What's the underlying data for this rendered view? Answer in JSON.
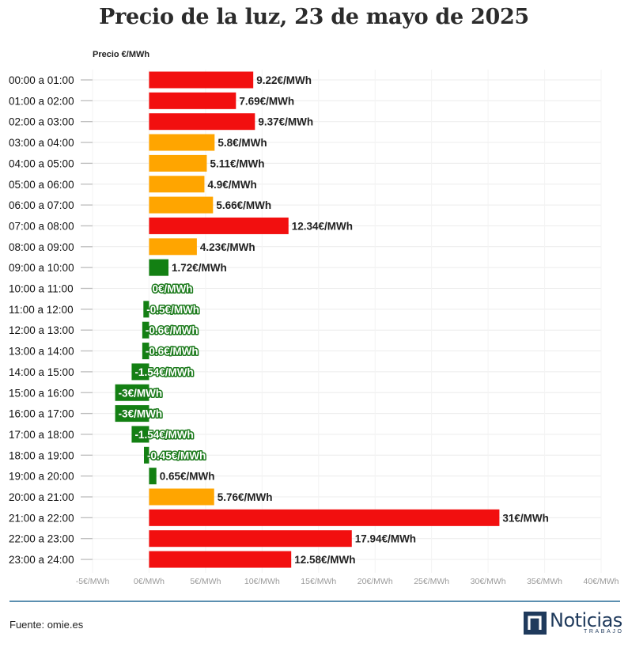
{
  "chart_data": {
    "type": "bar",
    "orientation": "horizontal",
    "title": "Precio de la luz, 23 de mayo de 2025",
    "ylabel": "Precio €/MWh",
    "xlabel": "",
    "xlim": [
      -5,
      40
    ],
    "xticks": [
      "-5€/MWh",
      "0€/MWh",
      "5€/MWh",
      "10€/MWh",
      "15€/MWh",
      "20€/MWh",
      "25€/MWh",
      "30€/MWh",
      "35€/MWh",
      "40€/MWh"
    ],
    "xtick_values": [
      -5,
      0,
      5,
      10,
      15,
      20,
      25,
      30,
      35,
      40
    ],
    "grid": true,
    "categories": [
      "00:00 a 01:00",
      "01:00 a 02:00",
      "02:00 a 03:00",
      "03:00 a 04:00",
      "04:00 a 05:00",
      "05:00 a 06:00",
      "06:00 a 07:00",
      "07:00 a 08:00",
      "08:00 a 09:00",
      "09:00 a 10:00",
      "10:00 a 11:00",
      "11:00 a 12:00",
      "12:00 a 13:00",
      "13:00 a 14:00",
      "14:00 a 15:00",
      "15:00 a 16:00",
      "16:00 a 17:00",
      "17:00 a 18:00",
      "18:00 a 19:00",
      "19:00 a 20:00",
      "20:00 a 21:00",
      "21:00 a 22:00",
      "22:00 a 23:00",
      "23:00 a 24:00"
    ],
    "values": [
      9.22,
      7.69,
      9.37,
      5.8,
      5.11,
      4.9,
      5.66,
      12.34,
      4.23,
      1.72,
      0,
      -0.5,
      -0.6,
      -0.6,
      -1.54,
      -3,
      -3,
      -1.54,
      -0.45,
      0.65,
      5.76,
      31,
      17.94,
      12.58
    ],
    "labels": [
      "9.22€/MWh",
      "7.69€/MWh",
      "9.37€/MWh",
      "5.8€/MWh",
      "5.11€/MWh",
      "4.9€/MWh",
      "5.66€/MWh",
      "12.34€/MWh",
      "4.23€/MWh",
      "1.72€/MWh",
      "0€/MWh",
      "-0.5€/MWh",
      "-0.6€/MWh",
      "-0.6€/MWh",
      "-1.54€/MWh",
      "-3€/MWh",
      "-3€/MWh",
      "-1.54€/MWh",
      "-0.45€/MWh",
      "0.65€/MWh",
      "5.76€/MWh",
      "31€/MWh",
      "17.94€/MWh",
      "12.58€/MWh"
    ],
    "levels": [
      "high",
      "high",
      "high",
      "mid",
      "mid",
      "mid",
      "mid",
      "high",
      "mid",
      "low",
      "low",
      "low",
      "low",
      "low",
      "low",
      "low",
      "low",
      "low",
      "low",
      "low",
      "mid",
      "high",
      "high",
      "high"
    ],
    "colors": {
      "high": "#f20f0f",
      "mid": "#ffa500",
      "low": "#138013"
    }
  },
  "footer": {
    "source": "Fuente: omie.es",
    "brand_name": "Noticias",
    "brand_sub": "TRABAJO"
  }
}
